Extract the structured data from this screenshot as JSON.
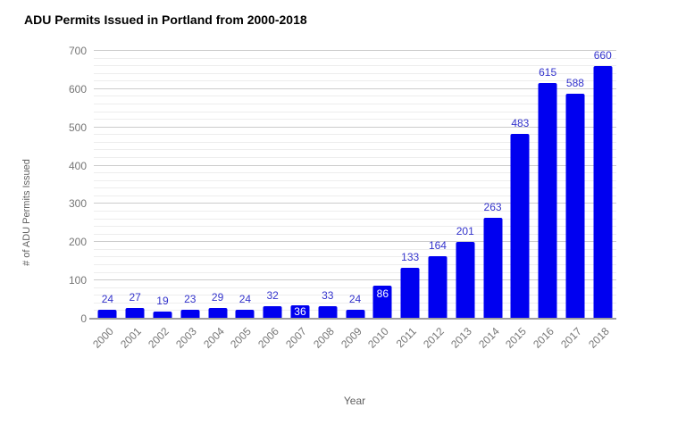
{
  "window": {
    "background": "#ffffff"
  },
  "chart_data": {
    "type": "bar",
    "title": "ADU Permits Issued in Portland from 2000-2018",
    "xlabel": "Year",
    "ylabel": "# of ADU Permits Issued",
    "categories": [
      "2000",
      "2001",
      "2002",
      "2003",
      "2004",
      "2005",
      "2006",
      "2007",
      "2008",
      "2009",
      "2010",
      "2011",
      "2012",
      "2013",
      "2014",
      "2015",
      "2016",
      "2017",
      "2018"
    ],
    "values": [
      24,
      27,
      19,
      23,
      29,
      24,
      32,
      36,
      33,
      24,
      86,
      133,
      164,
      201,
      263,
      483,
      615,
      588,
      660
    ],
    "annotations_shown": true,
    "inside_label_categories": [
      "2007",
      "2010"
    ],
    "ylim": [
      0,
      700
    ],
    "yticks": [
      0,
      100,
      200,
      300,
      400,
      500,
      600,
      700
    ],
    "minor_gridline_step": 20,
    "grid": true,
    "legend": "none",
    "x_tick_rotation_deg": -45,
    "colors": {
      "bar": "#0000f0",
      "annotation": "#3333cc",
      "annotation_inside": "#ffffff",
      "axis_text": "#757575",
      "axis_title_text": "#616161",
      "title_text": "#000000",
      "major_gridline": "#cccccc",
      "minor_gridline": "#ededed",
      "baseline": "#9e9e9e"
    }
  }
}
